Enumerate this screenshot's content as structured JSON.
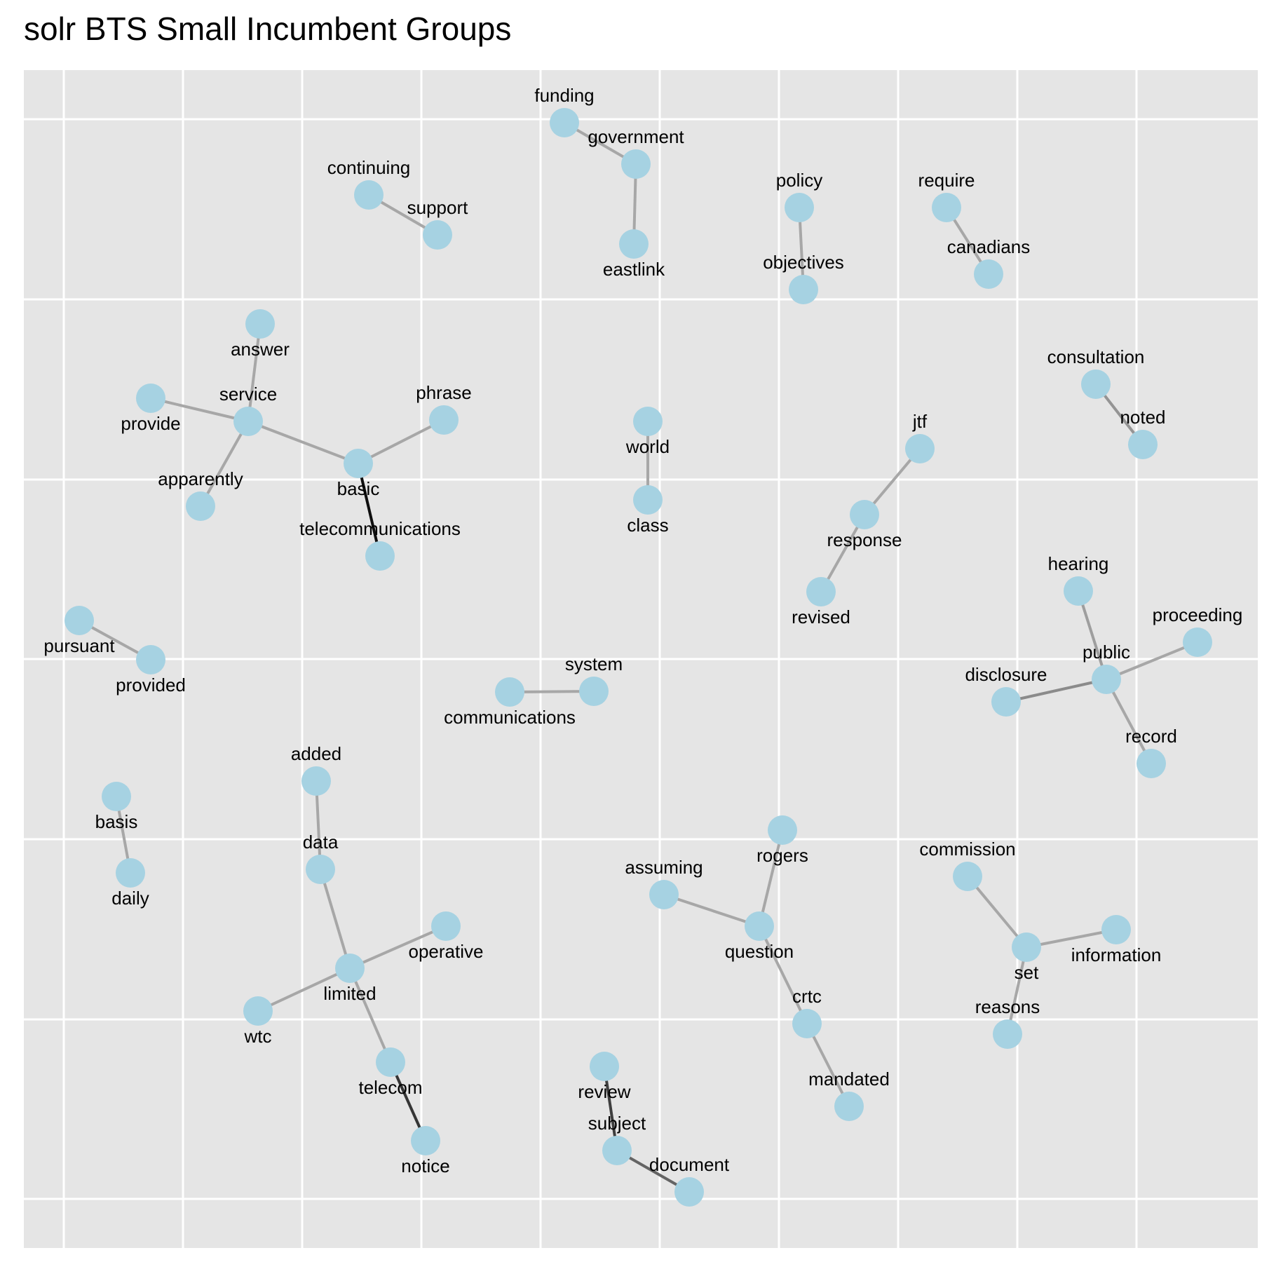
{
  "title": "solr BTS Small Incumbent Groups",
  "colors": {
    "panel": "#e5e5e5",
    "grid": "#ffffff",
    "node": "#a6d2e2",
    "text": "#000000"
  },
  "nodes": [
    {
      "id": "funding",
      "label": "funding"
    },
    {
      "id": "government",
      "label": "government"
    },
    {
      "id": "eastlink",
      "label": "eastlink"
    },
    {
      "id": "continuing",
      "label": "continuing"
    },
    {
      "id": "support",
      "label": "support"
    },
    {
      "id": "policy",
      "label": "policy"
    },
    {
      "id": "objectives",
      "label": "objectives"
    },
    {
      "id": "require",
      "label": "require"
    },
    {
      "id": "canadians",
      "label": "canadians"
    },
    {
      "id": "answer",
      "label": "answer"
    },
    {
      "id": "service",
      "label": "service"
    },
    {
      "id": "provide",
      "label": "provide"
    },
    {
      "id": "apparently",
      "label": "apparently"
    },
    {
      "id": "basic",
      "label": "basic"
    },
    {
      "id": "phrase",
      "label": "phrase"
    },
    {
      "id": "telecommunications",
      "label": "telecommunications"
    },
    {
      "id": "world",
      "label": "world"
    },
    {
      "id": "class",
      "label": "class"
    },
    {
      "id": "consultation",
      "label": "consultation"
    },
    {
      "id": "noted",
      "label": "noted"
    },
    {
      "id": "jtf",
      "label": "jtf"
    },
    {
      "id": "response",
      "label": "response"
    },
    {
      "id": "revised",
      "label": "revised"
    },
    {
      "id": "pursuant",
      "label": "pursuant"
    },
    {
      "id": "provided",
      "label": "provided"
    },
    {
      "id": "communications",
      "label": "communications"
    },
    {
      "id": "system",
      "label": "system"
    },
    {
      "id": "hearing",
      "label": "hearing"
    },
    {
      "id": "proceeding",
      "label": "proceeding"
    },
    {
      "id": "public",
      "label": "public"
    },
    {
      "id": "disclosure",
      "label": "disclosure"
    },
    {
      "id": "record",
      "label": "record"
    },
    {
      "id": "basis",
      "label": "basis"
    },
    {
      "id": "daily",
      "label": "daily"
    },
    {
      "id": "added",
      "label": "added"
    },
    {
      "id": "data",
      "label": "data"
    },
    {
      "id": "operative",
      "label": "operative"
    },
    {
      "id": "limited",
      "label": "limited"
    },
    {
      "id": "wtc",
      "label": "wtc"
    },
    {
      "id": "telecom",
      "label": "telecom"
    },
    {
      "id": "notice",
      "label": "notice"
    },
    {
      "id": "rogers",
      "label": "rogers"
    },
    {
      "id": "assuming",
      "label": "assuming"
    },
    {
      "id": "question",
      "label": "question"
    },
    {
      "id": "crtc",
      "label": "crtc"
    },
    {
      "id": "mandated",
      "label": "mandated"
    },
    {
      "id": "review",
      "label": "review"
    },
    {
      "id": "subject",
      "label": "subject"
    },
    {
      "id": "document",
      "label": "document"
    },
    {
      "id": "commission",
      "label": "commission"
    },
    {
      "id": "set",
      "label": "set"
    },
    {
      "id": "information",
      "label": "information"
    },
    {
      "id": "reasons",
      "label": "reasons"
    }
  ],
  "edges": [
    {
      "source": "funding",
      "target": "government",
      "strength": 0.2
    },
    {
      "source": "government",
      "target": "eastlink",
      "strength": 0.2
    },
    {
      "source": "continuing",
      "target": "support",
      "strength": 0.2
    },
    {
      "source": "policy",
      "target": "objectives",
      "strength": 0.2
    },
    {
      "source": "require",
      "target": "canadians",
      "strength": 0.2
    },
    {
      "source": "answer",
      "target": "service",
      "strength": 0.2
    },
    {
      "source": "provide",
      "target": "service",
      "strength": 0.2
    },
    {
      "source": "apparently",
      "target": "service",
      "strength": 0.2
    },
    {
      "source": "service",
      "target": "basic",
      "strength": 0.2
    },
    {
      "source": "basic",
      "target": "phrase",
      "strength": 0.2
    },
    {
      "source": "basic",
      "target": "telecommunications",
      "strength": 1.0
    },
    {
      "source": "world",
      "target": "class",
      "strength": 0.2
    },
    {
      "source": "consultation",
      "target": "noted",
      "strength": 0.3
    },
    {
      "source": "jtf",
      "target": "response",
      "strength": 0.2
    },
    {
      "source": "response",
      "target": "revised",
      "strength": 0.2
    },
    {
      "source": "pursuant",
      "target": "provided",
      "strength": 0.2
    },
    {
      "source": "communications",
      "target": "system",
      "strength": 0.2
    },
    {
      "source": "hearing",
      "target": "public",
      "strength": 0.25
    },
    {
      "source": "proceeding",
      "target": "public",
      "strength": 0.2
    },
    {
      "source": "disclosure",
      "target": "public",
      "strength": 0.35
    },
    {
      "source": "public",
      "target": "record",
      "strength": 0.2
    },
    {
      "source": "basis",
      "target": "daily",
      "strength": 0.2
    },
    {
      "source": "added",
      "target": "data",
      "strength": 0.2
    },
    {
      "source": "data",
      "target": "limited",
      "strength": 0.2
    },
    {
      "source": "operative",
      "target": "limited",
      "strength": 0.2
    },
    {
      "source": "wtc",
      "target": "limited",
      "strength": 0.2
    },
    {
      "source": "limited",
      "target": "telecom",
      "strength": 0.2
    },
    {
      "source": "telecom",
      "target": "notice",
      "strength": 0.8
    },
    {
      "source": "rogers",
      "target": "question",
      "strength": 0.2
    },
    {
      "source": "assuming",
      "target": "question",
      "strength": 0.2
    },
    {
      "source": "question",
      "target": "crtc",
      "strength": 0.2
    },
    {
      "source": "crtc",
      "target": "mandated",
      "strength": 0.2
    },
    {
      "source": "review",
      "target": "subject",
      "strength": 0.75
    },
    {
      "source": "subject",
      "target": "document",
      "strength": 0.55
    },
    {
      "source": "commission",
      "target": "set",
      "strength": 0.2
    },
    {
      "source": "set",
      "target": "information",
      "strength": 0.2
    },
    {
      "source": "set",
      "target": "reasons",
      "strength": 0.2
    }
  ]
}
